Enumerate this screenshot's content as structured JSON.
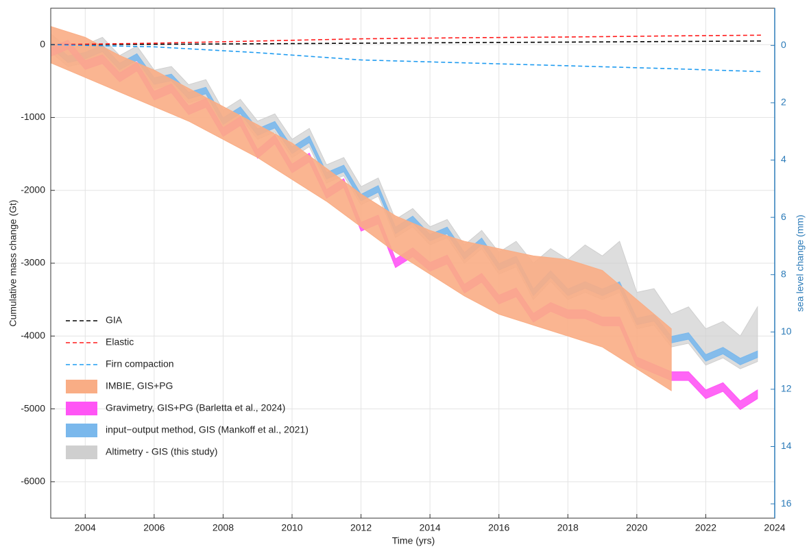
{
  "chart_data": {
    "type": "line",
    "xlabel": "Time (yrs)",
    "ylabel": "Cumulative mass change (Gt)",
    "y2label": "sea level change (mm)",
    "xlim": [
      2003,
      2024
    ],
    "xticks": [
      2004,
      2006,
      2008,
      2010,
      2012,
      2014,
      2016,
      2018,
      2020,
      2022,
      2024
    ],
    "ylim": [
      -6500,
      500
    ],
    "yticks": [
      -6000,
      -5000,
      -4000,
      -3000,
      -2000,
      -1000,
      0
    ],
    "y2lim": [
      16.5,
      -1.3
    ],
    "y2ticks": [
      0,
      2,
      4,
      6,
      8,
      10,
      12,
      14,
      16
    ],
    "grid": true,
    "legend": "lower left",
    "x": [
      2003,
      2003.5,
      2004,
      2004.5,
      2005,
      2005.5,
      2006,
      2006.5,
      2007,
      2007.5,
      2008,
      2008.5,
      2009,
      2009.5,
      2010,
      2010.5,
      2011,
      2011.5,
      2012,
      2012.5,
      2013,
      2013.5,
      2014,
      2014.5,
      2015,
      2015.5,
      2016,
      2016.5,
      2017,
      2017.5,
      2018,
      2018.5,
      2019,
      2019.5,
      2020,
      2020.5,
      2021,
      2021.5,
      2022,
      2022.5,
      2023,
      2023.5
    ],
    "series": [
      {
        "name": "GIA",
        "color": "#000000",
        "x": [
          2003,
          2006,
          2009,
          2012,
          2015,
          2018,
          2021,
          2023.6
        ],
        "values": [
          0,
          5,
          12,
          20,
          28,
          35,
          43,
          50
        ]
      },
      {
        "name": "Elastic",
        "color": "#ff1a1a",
        "x": [
          2003,
          2006,
          2009,
          2012,
          2015,
          2018,
          2021,
          2023.6
        ],
        "values": [
          0,
          20,
          50,
          80,
          95,
          105,
          120,
          130
        ]
      },
      {
        "name": "Firn compaction",
        "color": "#1e9bf0",
        "x": [
          2003,
          2006,
          2009,
          2012,
          2015,
          2018,
          2021,
          2023.6
        ],
        "values": [
          0,
          -30,
          -110,
          -210,
          -250,
          -290,
          -330,
          -370
        ]
      },
      {
        "name": "IMBIE, GIS+PG",
        "color": "#f9ad85",
        "x": [
          2003,
          2004,
          2005,
          2006,
          2007,
          2008,
          2009,
          2010,
          2011,
          2012,
          2013,
          2014,
          2015,
          2016,
          2017,
          2018,
          2019,
          2020,
          2021
        ],
        "upper": [
          250,
          100,
          -150,
          -350,
          -600,
          -850,
          -1100,
          -1350,
          -1700,
          -2050,
          -2350,
          -2550,
          -2700,
          -2800,
          -2900,
          -2950,
          -3100,
          -3500,
          -3900
        ],
        "lower": [
          -250,
          -450,
          -650,
          -850,
          -1050,
          -1300,
          -1550,
          -1850,
          -2150,
          -2500,
          -2850,
          -3150,
          -3450,
          -3700,
          -3850,
          -4000,
          -4150,
          -4450,
          -4750
        ]
      },
      {
        "name": "Gravimetry, GIS+PG (Barletta et al., 2024)",
        "color": "#ff55f5",
        "upper": [
          -40,
          60,
          -220,
          -140,
          -390,
          -240,
          -640,
          -540,
          -840,
          -740,
          -1140,
          -990,
          -1440,
          -1240,
          -1640,
          -1490,
          -1990,
          -1840,
          -2440,
          -2340,
          -2940,
          -2790,
          -2990,
          -2890,
          -3290,
          -3140,
          -3440,
          -3340,
          -3690,
          -3540,
          -3640,
          -3640,
          -3740,
          -3740,
          -4290,
          -4390,
          -4490,
          -4490,
          -4740,
          -4640,
          -4890,
          -4740
        ],
        "lower": [
          -160,
          -60,
          -340,
          -260,
          -510,
          -360,
          -760,
          -660,
          -960,
          -860,
          -1260,
          -1110,
          -1560,
          -1360,
          -1760,
          -1610,
          -2110,
          -1960,
          -2560,
          -2460,
          -3060,
          -2910,
          -3110,
          -3010,
          -3410,
          -3260,
          -3560,
          -3460,
          -3810,
          -3660,
          -3760,
          -3760,
          -3860,
          -3860,
          -4410,
          -4510,
          -4610,
          -4610,
          -4860,
          -4760,
          -5010,
          -4860
        ]
      },
      {
        "name": "input−output method, GIS (Mankoff et al., 2021)",
        "color": "#7ab8ec",
        "upper": [
          45,
          -155,
          -105,
          -5,
          -255,
          -125,
          -455,
          -405,
          -655,
          -585,
          -1005,
          -855,
          -1155,
          -1055,
          -1405,
          -1255,
          -1755,
          -1655,
          -2055,
          -1935,
          -2505,
          -2355,
          -2605,
          -2505,
          -2855,
          -2655,
          -3005,
          -2905,
          -3355,
          -3105,
          -3355,
          -3255,
          -3355,
          -3255,
          -3755,
          -3705,
          -4005,
          -3955,
          -4255,
          -4155,
          -4305,
          -4205
        ],
        "lower": [
          -45,
          -245,
          -195,
          -95,
          -345,
          -215,
          -545,
          -495,
          -745,
          -675,
          -1095,
          -945,
          -1245,
          -1145,
          -1495,
          -1345,
          -1845,
          -1745,
          -2145,
          -2025,
          -2595,
          -2445,
          -2695,
          -2595,
          -2945,
          -2745,
          -3095,
          -2995,
          -3445,
          -3195,
          -3445,
          -3345,
          -3445,
          -3345,
          -3845,
          -3795,
          -4095,
          -4045,
          -4345,
          -4245,
          -4395,
          -4295
        ]
      },
      {
        "name": "Altimetry - GIS (this study)",
        "color": "#cfcfcf",
        "upper": [
          150,
          -50,
          0,
          100,
          -150,
          -20,
          -350,
          -300,
          -550,
          -480,
          -900,
          -750,
          -1050,
          -950,
          -1300,
          -1150,
          -1650,
          -1550,
          -1950,
          -1830,
          -2400,
          -2250,
          -2500,
          -2400,
          -2750,
          -2550,
          -2850,
          -2700,
          -3000,
          -2800,
          -2950,
          -2750,
          -2900,
          -2700,
          -3400,
          -3350,
          -3700,
          -3600,
          -3900,
          -3800,
          -4000,
          -3600
        ],
        "lower": [
          -100,
          -300,
          -250,
          -150,
          -400,
          -270,
          -600,
          -550,
          -800,
          -730,
          -1150,
          -1000,
          -1300,
          -1200,
          -1550,
          -1400,
          -1900,
          -1800,
          -2200,
          -2080,
          -2650,
          -2500,
          -2750,
          -2650,
          -3000,
          -2800,
          -3150,
          -3050,
          -3500,
          -3250,
          -3500,
          -3400,
          -3500,
          -3400,
          -3900,
          -3850,
          -4150,
          -4100,
          -4400,
          -4300,
          -4450,
          -4350
        ]
      }
    ]
  }
}
